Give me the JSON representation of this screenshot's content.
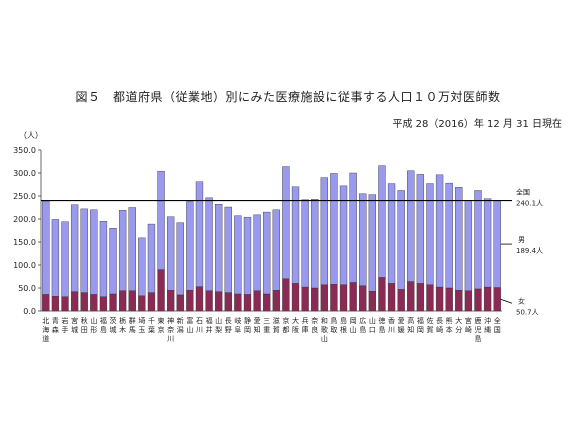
{
  "chart_data": {
    "type": "bar",
    "stacked": true,
    "title": "図５　都道府県（従業地）別にみた医療施設に従事する人口１０万対医師数",
    "subtitle": "平成 28（2016）年 12 月 31 日現在",
    "ylabel": "（人）",
    "ylim": [
      0,
      350
    ],
    "yticks": [
      "0.0",
      "50.0",
      "100.0",
      "150.0",
      "200.0",
      "250.0",
      "300.0",
      "350.0"
    ],
    "categories": [
      [
        "北",
        "海",
        "道"
      ],
      [
        "青",
        "森"
      ],
      [
        "岩",
        "手"
      ],
      [
        "宮",
        "城"
      ],
      [
        "秋",
        "田"
      ],
      [
        "山",
        "形"
      ],
      [
        "福",
        "島"
      ],
      [
        "茨",
        "城"
      ],
      [
        "栃",
        "木"
      ],
      [
        "群",
        "馬"
      ],
      [
        "埼",
        "玉"
      ],
      [
        "千",
        "葉"
      ],
      [
        "東",
        "京"
      ],
      [
        "神",
        "奈",
        "川"
      ],
      [
        "新",
        "潟"
      ],
      [
        "富",
        "山"
      ],
      [
        "石",
        "川"
      ],
      [
        "福",
        "井"
      ],
      [
        "山",
        "梨"
      ],
      [
        "長",
        "野"
      ],
      [
        "岐",
        "阜"
      ],
      [
        "静",
        "岡"
      ],
      [
        "愛",
        "知"
      ],
      [
        "三",
        "重"
      ],
      [
        "滋",
        "賀"
      ],
      [
        "京",
        "都"
      ],
      [
        "大",
        "阪"
      ],
      [
        "兵",
        "庫"
      ],
      [
        "奈",
        "良"
      ],
      [
        "和",
        "歌",
        "山"
      ],
      [
        "鳥",
        "取"
      ],
      [
        "島",
        "根"
      ],
      [
        "岡",
        "山"
      ],
      [
        "広",
        "島"
      ],
      [
        "山",
        "口"
      ],
      [
        "徳",
        "島"
      ],
      [
        "香",
        "川"
      ],
      [
        "愛",
        "媛"
      ],
      [
        "高",
        "知"
      ],
      [
        "福",
        "岡"
      ],
      [
        "佐",
        "賀"
      ],
      [
        "長",
        "崎"
      ],
      [
        "熊",
        "本"
      ],
      [
        "大",
        "分"
      ],
      [
        "宮",
        "崎"
      ],
      [
        "鹿",
        "児",
        "島"
      ],
      [
        "沖",
        "縄"
      ],
      [
        "全",
        "国"
      ]
    ],
    "series": [
      {
        "name": "女",
        "color": "#8b2a55",
        "values": [
          36,
          32,
          31,
          42,
          40,
          36,
          31,
          37,
          44,
          44,
          33,
          40,
          90,
          45,
          35,
          45,
          53,
          44,
          42,
          40,
          37,
          36,
          44,
          37,
          45,
          70,
          60,
          52,
          50,
          57,
          58,
          57,
          62,
          55,
          43,
          73,
          60,
          47,
          64,
          60,
          57,
          52,
          50,
          45,
          44,
          48,
          52,
          51
        ]
      },
      {
        "name": "男",
        "color": "#9999ee",
        "values": [
          203,
          167,
          163,
          189,
          182,
          184,
          164,
          143,
          175,
          181,
          126,
          149,
          214,
          160,
          157,
          193,
          228,
          202,
          190,
          186,
          170,
          168,
          165,
          178,
          175,
          244,
          210,
          190,
          193,
          233,
          241,
          215,
          238,
          200,
          210,
          243,
          217,
          215,
          241,
          237,
          220,
          244,
          228,
          224,
          196,
          214,
          192,
          189
        ]
      }
    ],
    "reference_line": {
      "value": 240.1,
      "label": "全国",
      "value_label": "240.1人"
    },
    "annotations": [
      {
        "series": "男",
        "label": "男",
        "value_label": "189.4人"
      },
      {
        "series": "女",
        "label": "女",
        "value_label": "50.7人"
      }
    ],
    "grid": false,
    "legend": "right"
  }
}
